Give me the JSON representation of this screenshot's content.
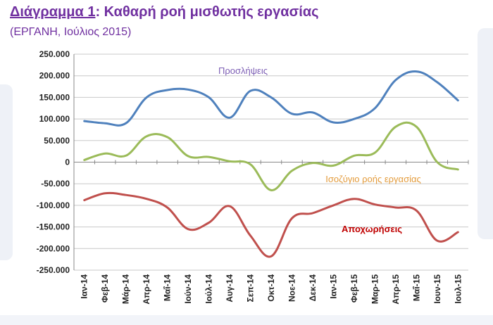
{
  "header": {
    "title_lead": "Διάγραμμα 1",
    "title_rest": ": Καθαρή ροή μισθωτής εργασίας",
    "subtitle": "(ΕΡΓΑΝΗ, Ιούλιος 2015)"
  },
  "chart_data": {
    "type": "line",
    "ylim": [
      -250000,
      250000
    ],
    "yticks": [
      250000,
      200000,
      150000,
      100000,
      50000,
      0,
      -50000,
      -100000,
      -150000,
      -200000,
      -250000
    ],
    "ytick_labels": [
      "250.000",
      "200.000",
      "150.000",
      "100.000",
      "50.000",
      "0",
      "-50.000",
      "-100.000",
      "-150.000",
      "-200.000",
      "-250.000"
    ],
    "categories": [
      "Ιαν-14",
      "Φεβ-14",
      "Μάρ-14",
      "Απρ-14",
      "Μαΐ-14",
      "Ιούν-14",
      "Ιούλ-14",
      "Αυγ-14",
      "Σεπ-14",
      "Οκτ-14",
      "Νοε-14",
      "Δεκ-14",
      "Ιαν-15",
      "Φεβ-15",
      "Μαρ-15",
      "Απρ-15",
      "Μαΐ-15",
      "Ιουν-15",
      "Ιουλ-15"
    ],
    "grid": true,
    "series": [
      {
        "name": "Προσλήψεις",
        "color": "#4f81bd",
        "label_color": "#7d5fb5",
        "values": [
          95000,
          90000,
          90000,
          150000,
          167000,
          168000,
          150000,
          103000,
          165000,
          150000,
          112000,
          115000,
          92000,
          100000,
          125000,
          190000,
          210000,
          185000,
          143000
        ]
      },
      {
        "name": "Ισοζύγιο ροής εργασίας",
        "color": "#9bbb59",
        "label_color": "#e39b3b",
        "values": [
          5000,
          20000,
          15000,
          60000,
          58000,
          14000,
          12000,
          2000,
          -5000,
          -65000,
          -20000,
          -2000,
          -8000,
          15000,
          22000,
          82000,
          82000,
          0,
          -17000
        ]
      },
      {
        "name": "Αποχωρήσεις",
        "color": "#c0504d",
        "label_color": "#c00000",
        "values": [
          -88000,
          -72000,
          -76000,
          -85000,
          -105000,
          -155000,
          -140000,
          -102000,
          -170000,
          -218000,
          -130000,
          -118000,
          -100000,
          -85000,
          -98000,
          -105000,
          -112000,
          -182000,
          -162000
        ]
      }
    ]
  }
}
